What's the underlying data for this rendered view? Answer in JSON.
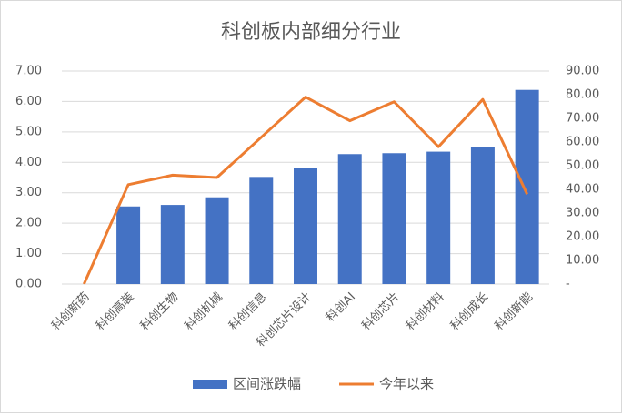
{
  "chart_data": {
    "type": "bar-line",
    "title": "科创板内部细分行业",
    "categories": [
      "科创新药",
      "科创高装",
      "科创生物",
      "科创机械",
      "科创信息",
      "科创芯片设计",
      "科创AI",
      "科创芯片",
      "科创材料",
      "科创成长",
      "科创新能"
    ],
    "series": [
      {
        "name": "区间涨跌幅",
        "type": "bar",
        "color": "#4472c4",
        "values": [
          0,
          2.55,
          2.6,
          2.85,
          3.52,
          3.8,
          4.27,
          4.3,
          4.35,
          4.5,
          6.38
        ]
      },
      {
        "name": "今年以来",
        "type": "line",
        "axis": "y2",
        "color": "#ed7d31",
        "values": [
          0,
          42,
          46,
          45,
          62,
          79,
          69,
          77,
          58,
          78,
          38
        ]
      }
    ],
    "ylim": [
      0,
      7
    ],
    "yticks": [
      {
        "value": 0,
        "label": "0.00"
      },
      {
        "value": 1,
        "label": "1.00"
      },
      {
        "value": 2,
        "label": "2.00"
      },
      {
        "value": 3,
        "label": "3.00"
      },
      {
        "value": 4,
        "label": "4.00"
      },
      {
        "value": 5,
        "label": "5.00"
      },
      {
        "value": 6,
        "label": "6.00"
      },
      {
        "value": 7,
        "label": "7.00"
      }
    ],
    "y2lim": [
      0,
      90
    ],
    "y2ticks": [
      {
        "value": 0,
        "label": "-"
      },
      {
        "value": 10,
        "label": "10.00"
      },
      {
        "value": 20,
        "label": "20.00"
      },
      {
        "value": 30,
        "label": "30.00"
      },
      {
        "value": 40,
        "label": "40.00"
      },
      {
        "value": 50,
        "label": "50.00"
      },
      {
        "value": 60,
        "label": "60.00"
      },
      {
        "value": 70,
        "label": "70.00"
      },
      {
        "value": 80,
        "label": "80.00"
      },
      {
        "value": 90,
        "label": "90.00"
      }
    ],
    "grid": true
  }
}
